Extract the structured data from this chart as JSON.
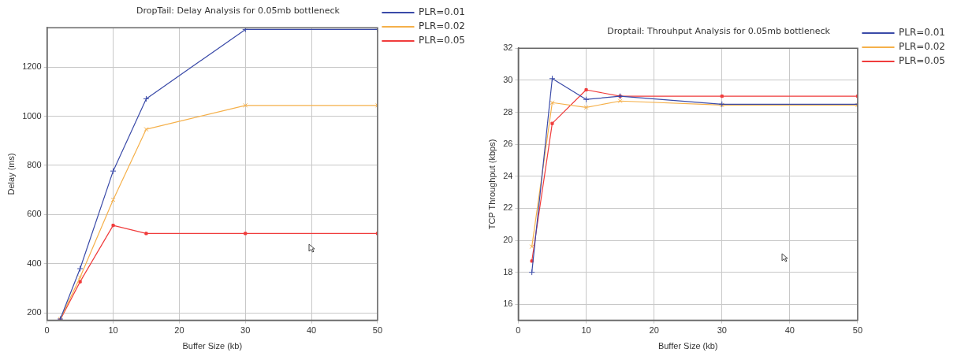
{
  "chart_data": [
    {
      "type": "line",
      "title": "DropTail: Delay Analysis for 0.05mb bottleneck",
      "xlabel": "Buffer Size (kb)",
      "ylabel": "Delay (ms)",
      "x": [
        2,
        5,
        10,
        15,
        30,
        50
      ],
      "xlim": [
        0,
        50
      ],
      "xticks": [
        0,
        10,
        20,
        30,
        40,
        50
      ],
      "ylim": [
        170,
        1360
      ],
      "yticks": [
        200,
        400,
        600,
        800,
        1000,
        1200
      ],
      "grid": true,
      "legend": "right",
      "line_style": "solid",
      "series": [
        {
          "name": "PLR=0.01",
          "color": "#3a4aa8",
          "marker": "cross",
          "values": [
            175,
            380,
            777,
            1071,
            1353,
            1353
          ]
        },
        {
          "name": "PLR=0.02",
          "color": "#f5b04a",
          "marker": "x",
          "values": [
            175,
            345,
            660,
            947,
            1044,
            1044
          ]
        },
        {
          "name": "PLR=0.05",
          "color": "#f03c3c",
          "marker": "square",
          "values": [
            172,
            327,
            556,
            523,
            523,
            523
          ]
        }
      ]
    },
    {
      "type": "line",
      "title": "Droptail: Throuhput Analysis for 0.05mb bottleneck",
      "xlabel": "Buffer Size (kb)",
      "ylabel": "TCP Throughput (kbps)",
      "x": [
        2,
        5,
        10,
        15,
        30,
        50
      ],
      "xlim": [
        0,
        50
      ],
      "xticks": [
        0,
        10,
        20,
        30,
        40,
        50
      ],
      "ylim": [
        15,
        32
      ],
      "yticks": [
        16,
        18,
        20,
        22,
        24,
        26,
        28,
        30,
        32
      ],
      "grid": true,
      "legend": "right",
      "line_style": "solid",
      "series": [
        {
          "name": "PLR=0.01",
          "color": "#3a4aa8",
          "marker": "cross",
          "values": [
            18,
            30.1,
            28.8,
            29,
            28.5,
            28.5
          ]
        },
        {
          "name": "PLR=0.02",
          "color": "#f5b04a",
          "marker": "x",
          "values": [
            19.6,
            28.6,
            28.3,
            28.7,
            28.45,
            28.45
          ]
        },
        {
          "name": "PLR=0.05",
          "color": "#f03c3c",
          "marker": "square",
          "values": [
            18.7,
            27.3,
            29.4,
            29,
            29,
            29
          ]
        }
      ]
    }
  ]
}
